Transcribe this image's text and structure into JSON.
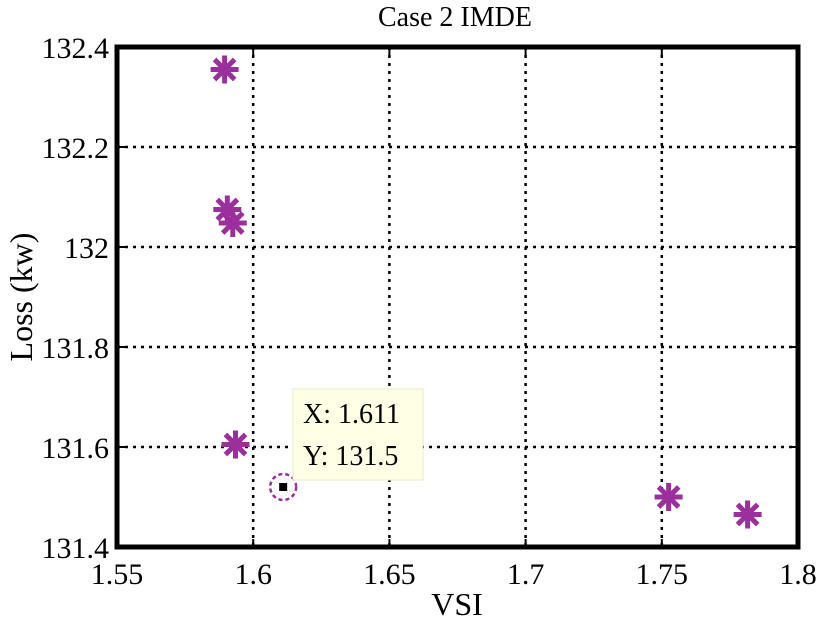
{
  "chart_data": {
    "type": "scatter",
    "title": "Case 2 IMDE",
    "xlabel": "VSI",
    "ylabel": "Loss (kw)",
    "xlim": [
      1.55,
      1.8
    ],
    "ylim": [
      131.4,
      132.4
    ],
    "xticks": [
      "1.55",
      "1.6",
      "1.65",
      "1.7",
      "1.75",
      "1.8"
    ],
    "yticks": [
      "131.4",
      "131.6",
      "131.8",
      "132",
      "132.2",
      "132.4"
    ],
    "grid": true,
    "marker_color": "#9b2f9b",
    "points": [
      {
        "x": 1.5895,
        "y": 132.355
      },
      {
        "x": 1.5905,
        "y": 132.075
      },
      {
        "x": 1.5925,
        "y": 132.048
      },
      {
        "x": 1.5935,
        "y": 131.605
      },
      {
        "x": 1.7525,
        "y": 131.5
      },
      {
        "x": 1.7815,
        "y": 131.465
      }
    ],
    "highlighted_point": {
      "x": 1.611,
      "y": 131.52
    },
    "datatip": {
      "x_text": "X: 1.611",
      "y_text": "Y: 131.5"
    }
  }
}
